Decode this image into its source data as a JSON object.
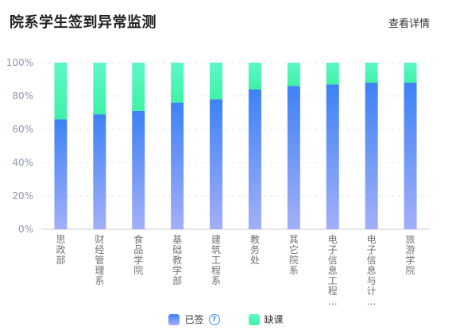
{
  "header": {
    "title": "院系学生签到异常监测",
    "detail_link": "查看详情"
  },
  "legend": {
    "attended_label": "已签",
    "absent_label": "缺课",
    "help_icon": "help-circle-icon"
  },
  "colors": {
    "attended_top": "#3d82f5",
    "attended_bottom": "#a3aff8",
    "absent_top": "#5df7c9",
    "absent_bottom": "#3ff2a6",
    "axis_text": "#8c93b0",
    "category_text": "#737373"
  },
  "chart_data": {
    "type": "bar",
    "stacked": true,
    "categories": [
      "思政部",
      "财经管理系",
      "食品学院",
      "基础教学部",
      "建筑工程系",
      "教务处",
      "其它院系",
      "电子信息工程…",
      "电子信息与计…",
      "旅游学院"
    ],
    "series": [
      {
        "name": "已签",
        "values": [
          66,
          69,
          71,
          76,
          78,
          84,
          86,
          87,
          88,
          88
        ]
      },
      {
        "name": "缺课",
        "values": [
          34,
          31,
          29,
          24,
          22,
          16,
          14,
          13,
          12,
          12
        ]
      }
    ],
    "ylim": [
      0,
      100
    ],
    "yticks": [
      "0%",
      "20%",
      "40%",
      "60%",
      "80%",
      "100%"
    ],
    "grid": true,
    "legend_position": "bottom"
  }
}
